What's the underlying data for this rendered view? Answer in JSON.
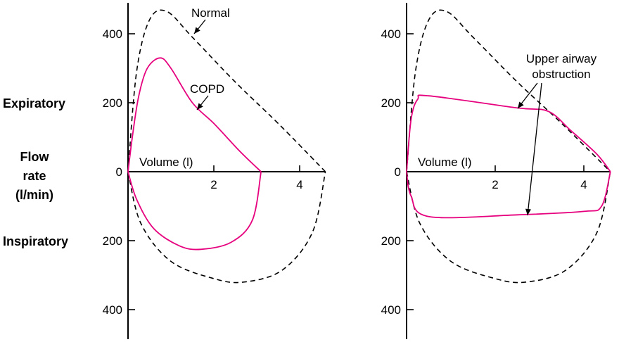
{
  "side_labels": {
    "expiratory": "Expiratory",
    "flow": "Flow",
    "rate": "rate",
    "unit": "(l/min)",
    "inspiratory": "Inspiratory"
  },
  "colors": {
    "pink": "#e6007e",
    "black": "#000000"
  },
  "chart_data": [
    {
      "type": "line",
      "xlabel": "Volume (l)",
      "ylabel": "Flow rate (l/min)",
      "xlim": [
        0,
        4.6
      ],
      "ylim": [
        -480,
        480
      ],
      "x_ticks": [
        2,
        4
      ],
      "y_ticks": [
        {
          "value": 400,
          "label": "400"
        },
        {
          "value": 200,
          "label": "200"
        },
        {
          "value": 0,
          "label": "0"
        },
        {
          "value": -200,
          "label": "200"
        },
        {
          "value": -400,
          "label": "400"
        }
      ],
      "annotations": [
        "Normal",
        "COPD"
      ],
      "series": [
        {
          "name": "Normal",
          "style": "dashed",
          "expiratory": [
            [
              0,
              0
            ],
            [
              0.2,
              290
            ],
            [
              0.5,
              440
            ],
            [
              0.9,
              465
            ],
            [
              1.5,
              390
            ],
            [
              2.5,
              260
            ],
            [
              3.5,
              140
            ],
            [
              4.6,
              0
            ]
          ],
          "inspiratory": [
            [
              0,
              0
            ],
            [
              0.3,
              -150
            ],
            [
              1.0,
              -260
            ],
            [
              2.0,
              -310
            ],
            [
              2.7,
              -320
            ],
            [
              3.6,
              -285
            ],
            [
              4.3,
              -175
            ],
            [
              4.6,
              0
            ]
          ]
        },
        {
          "name": "COPD",
          "style": "solid",
          "expiratory": [
            [
              0,
              0
            ],
            [
              0.1,
              100
            ],
            [
              0.25,
              220
            ],
            [
              0.45,
              300
            ],
            [
              0.75,
              330
            ],
            [
              1.0,
              300
            ],
            [
              1.5,
              200
            ],
            [
              2.0,
              140
            ],
            [
              2.6,
              60
            ],
            [
              3.1,
              0
            ]
          ],
          "inspiratory": [
            [
              0,
              0
            ],
            [
              0.2,
              -80
            ],
            [
              0.6,
              -165
            ],
            [
              1.2,
              -215
            ],
            [
              1.7,
              -225
            ],
            [
              2.4,
              -205
            ],
            [
              2.9,
              -140
            ],
            [
              3.1,
              0
            ]
          ]
        }
      ]
    },
    {
      "type": "line",
      "xlabel": "Volume (l)",
      "ylabel": "Flow rate (l/min)",
      "xlim": [
        0,
        4.6
      ],
      "ylim": [
        -480,
        480
      ],
      "x_ticks": [
        2,
        4
      ],
      "y_ticks": [
        {
          "value": 400,
          "label": "400"
        },
        {
          "value": 200,
          "label": "200"
        },
        {
          "value": 0,
          "label": "0"
        },
        {
          "value": -200,
          "label": "200"
        },
        {
          "value": -400,
          "label": "400"
        }
      ],
      "annotations": [
        "Upper airway",
        "obstruction"
      ],
      "series": [
        {
          "name": "Normal",
          "style": "dashed",
          "expiratory": [
            [
              0,
              0
            ],
            [
              0.2,
              290
            ],
            [
              0.5,
              440
            ],
            [
              0.9,
              465
            ],
            [
              1.5,
              390
            ],
            [
              2.5,
              260
            ],
            [
              3.5,
              140
            ],
            [
              4.6,
              0
            ]
          ],
          "inspiratory": [
            [
              0,
              0
            ],
            [
              0.3,
              -150
            ],
            [
              1.0,
              -260
            ],
            [
              2.0,
              -310
            ],
            [
              2.7,
              -320
            ],
            [
              3.6,
              -285
            ],
            [
              4.3,
              -175
            ],
            [
              4.6,
              0
            ]
          ]
        },
        {
          "name": "Upper airway obstruction",
          "style": "solid",
          "expiratory": [
            [
              0,
              0
            ],
            [
              0.1,
              150
            ],
            [
              0.25,
              210
            ],
            [
              0.5,
              220
            ],
            [
              2.5,
              185
            ],
            [
              3.2,
              175
            ],
            [
              3.7,
              120
            ],
            [
              4.3,
              50
            ],
            [
              4.6,
              0
            ]
          ],
          "inspiratory": [
            [
              0,
              0
            ],
            [
              0.1,
              -70
            ],
            [
              0.5,
              -130
            ],
            [
              2.5,
              -125
            ],
            [
              4.0,
              -115
            ],
            [
              4.4,
              -100
            ],
            [
              4.6,
              0
            ]
          ]
        }
      ]
    }
  ]
}
